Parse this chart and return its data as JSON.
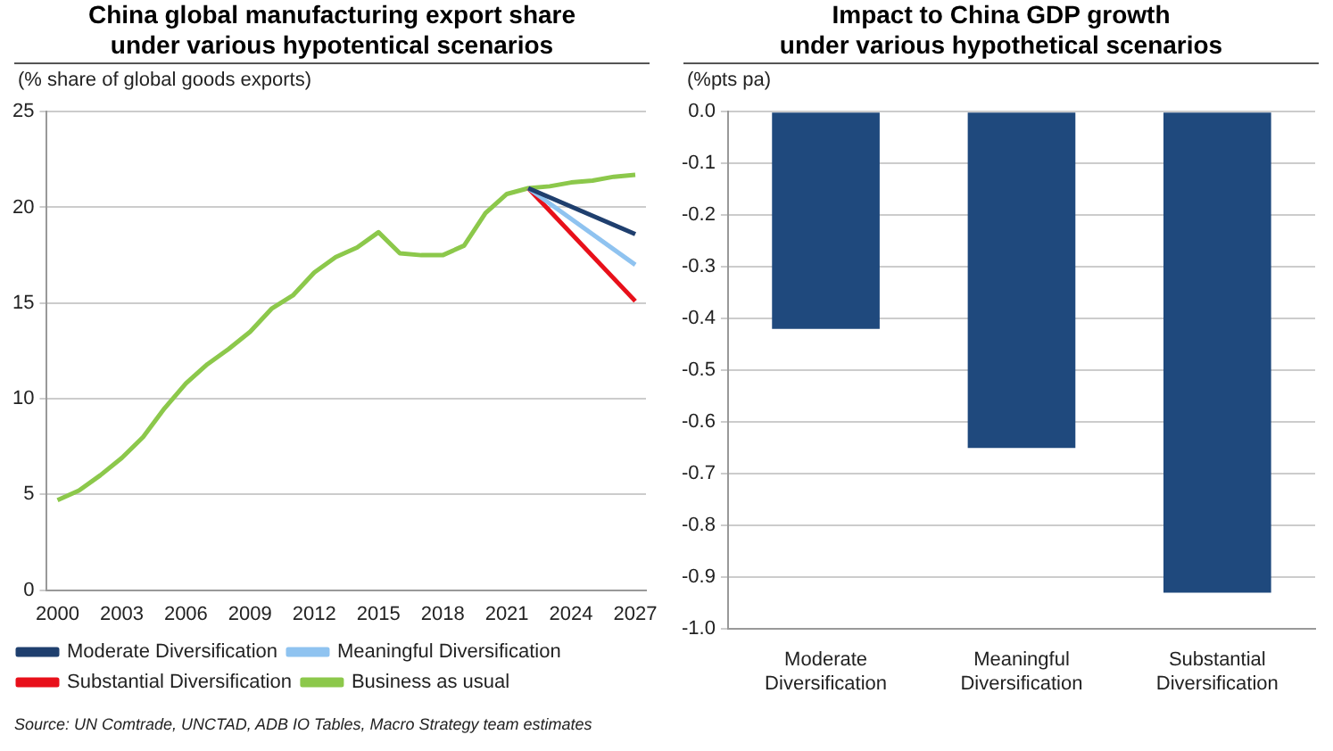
{
  "chart_data": [
    {
      "type": "line",
      "title": "China global manufacturing export share\nunder various hypotentical scenarios",
      "ylabel": "(% share of global goods exports)",
      "xlim": [
        1999.5,
        2027.5
      ],
      "xticks": [
        2000,
        2003,
        2006,
        2009,
        2012,
        2015,
        2018,
        2021,
        2024,
        2027
      ],
      "ylim": [
        0,
        25
      ],
      "yticks": [
        0,
        5,
        10,
        15,
        20,
        25
      ],
      "grid": "y",
      "legend": "bottom",
      "marker": "none",
      "line_style": "solid",
      "series": [
        {
          "name": "Moderate Diversification",
          "color": "#1f3f6e",
          "x": [
            2022,
            2027
          ],
          "values": [
            21.0,
            18.6
          ]
        },
        {
          "name": "Meaningful Diversification",
          "color": "#8fc3f0",
          "x": [
            2022,
            2027
          ],
          "values": [
            21.0,
            17.0
          ]
        },
        {
          "name": "Substantial Diversification",
          "color": "#e8101a",
          "x": [
            2022,
            2027
          ],
          "values": [
            21.0,
            15.1
          ]
        },
        {
          "name": "Business as usual",
          "color": "#8cc84b",
          "x": [
            2000,
            2001,
            2002,
            2003,
            2004,
            2005,
            2006,
            2007,
            2008,
            2009,
            2010,
            2011,
            2012,
            2013,
            2014,
            2015,
            2016,
            2017,
            2018,
            2019,
            2020,
            2021,
            2022,
            2023,
            2024,
            2025,
            2026,
            2027
          ],
          "values": [
            4.7,
            5.2,
            6.0,
            6.9,
            8.0,
            9.5,
            10.8,
            11.8,
            12.6,
            13.5,
            14.7,
            15.4,
            16.6,
            17.4,
            17.9,
            18.7,
            17.6,
            17.5,
            17.5,
            18.0,
            19.7,
            20.7,
            21.0,
            21.1,
            21.3,
            21.4,
            21.6,
            21.7
          ]
        }
      ],
      "annotations": [
        "Source: UN Comtrade, UNCTAD, ADB IO Tables, Macro Strategy team estimates"
      ]
    },
    {
      "type": "bar",
      "title": "Impact to China GDP growth\nunder various hypothetical scenarios",
      "ylabel": "(%pts pa)",
      "categories": [
        "Moderate Diversification",
        "Meaningful Diversification",
        "Substantial Diversification"
      ],
      "values": [
        -0.42,
        -0.65,
        -0.93
      ],
      "color": "#1f497d",
      "ylim": [
        -1.0,
        0.0
      ],
      "yticks": [
        {
          "value": -1.0,
          "label": "-1.0"
        },
        {
          "value": -0.9,
          "label": "-0.9"
        },
        {
          "value": -0.8,
          "label": "-0.8"
        },
        {
          "value": -0.7,
          "label": "-0.7"
        },
        {
          "value": -0.6,
          "label": "-0.6"
        },
        {
          "value": -0.5,
          "label": "-0.5"
        },
        {
          "value": -0.4,
          "label": "-0.4"
        },
        {
          "value": -0.3,
          "label": "-0.3"
        },
        {
          "value": -0.2,
          "label": "-0.2"
        },
        {
          "value": -0.1,
          "label": "-0.1"
        },
        {
          "value": 0.0,
          "label": "0.0"
        }
      ],
      "grid": "y",
      "legend": false
    }
  ]
}
